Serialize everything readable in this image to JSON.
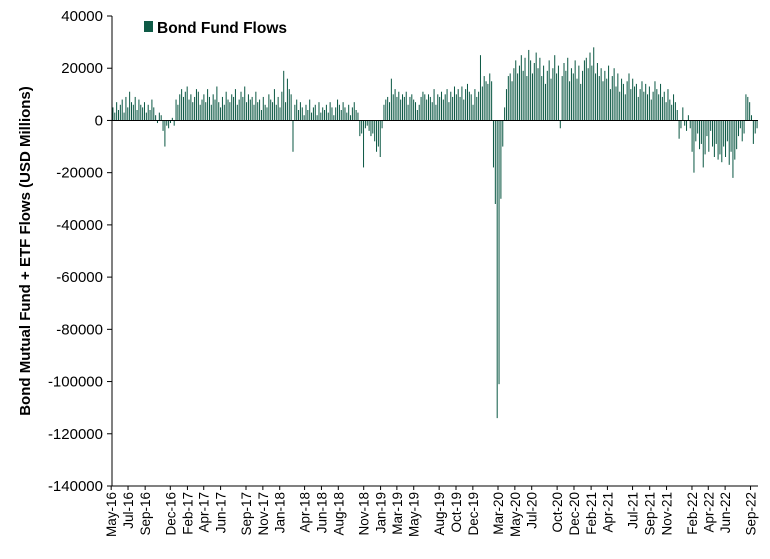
{
  "chart_data": {
    "type": "bar",
    "title": "",
    "xlabel": "",
    "ylabel": "Bond Mutual Fund + ETF Flows (USD Millions)",
    "ylim": [
      -140000,
      40000
    ],
    "yticks": [
      40000,
      20000,
      0,
      -20000,
      -40000,
      -60000,
      -80000,
      -100000,
      -120000,
      -140000
    ],
    "grid": false,
    "legend_position": "top-left",
    "x_start": "2016-05-04",
    "x_end": "2022-09-28",
    "x_tick_labels": [
      {
        "label": "May-16",
        "date": "2016-05-01"
      },
      {
        "label": "Jul-16",
        "date": "2016-07-01"
      },
      {
        "label": "Sep-16",
        "date": "2016-09-01"
      },
      {
        "label": "Dec-16",
        "date": "2016-12-01"
      },
      {
        "label": "Feb-17",
        "date": "2017-02-01"
      },
      {
        "label": "Apr-17",
        "date": "2017-04-01"
      },
      {
        "label": "Jun-17",
        "date": "2017-06-01"
      },
      {
        "label": "Sep-17",
        "date": "2017-09-01"
      },
      {
        "label": "Nov-17",
        "date": "2017-11-01"
      },
      {
        "label": "Jan-18",
        "date": "2018-01-01"
      },
      {
        "label": "Apr-18",
        "date": "2018-04-01"
      },
      {
        "label": "Jun-18",
        "date": "2018-06-01"
      },
      {
        "label": "Aug-18",
        "date": "2018-08-01"
      },
      {
        "label": "Nov-18",
        "date": "2018-11-01"
      },
      {
        "label": "Jan-19",
        "date": "2019-01-01"
      },
      {
        "label": "Mar-19",
        "date": "2019-03-01"
      },
      {
        "label": "May-19",
        "date": "2019-05-01"
      },
      {
        "label": "Aug-19",
        "date": "2019-08-01"
      },
      {
        "label": "Oct-19",
        "date": "2019-10-01"
      },
      {
        "label": "Dec-19",
        "date": "2019-12-01"
      },
      {
        "label": "Mar-20",
        "date": "2020-03-01"
      },
      {
        "label": "May-20",
        "date": "2020-05-01"
      },
      {
        "label": "Jul-20",
        "date": "2020-07-01"
      },
      {
        "label": "Oct-20",
        "date": "2020-10-01"
      },
      {
        "label": "Dec-20",
        "date": "2020-12-01"
      },
      {
        "label": "Feb-21",
        "date": "2021-02-01"
      },
      {
        "label": "Apr-21",
        "date": "2021-04-01"
      },
      {
        "label": "Jul-21",
        "date": "2021-07-01"
      },
      {
        "label": "Sep-21",
        "date": "2021-09-01"
      },
      {
        "label": "Nov-21",
        "date": "2021-11-01"
      },
      {
        "label": "Feb-22",
        "date": "2022-02-01"
      },
      {
        "label": "Apr-22",
        "date": "2022-04-01"
      },
      {
        "label": "Jun-22",
        "date": "2022-06-01"
      },
      {
        "label": "Sep-22",
        "date": "2022-09-01"
      }
    ],
    "series": [
      {
        "name": "Bond Fund Flows",
        "color": "#0E5A46",
        "frequency": "weekly",
        "values": [
          5000,
          3000,
          7000,
          4000,
          6000,
          8000,
          3000,
          9000,
          5000,
          11000,
          7000,
          6000,
          9000,
          4000,
          8000,
          6000,
          5000,
          7000,
          3000,
          6000,
          4000,
          8000,
          5000,
          2000,
          -1000,
          3000,
          2000,
          -4000,
          -10000,
          -2000,
          -3000,
          -1000,
          1000,
          -2000,
          8000,
          6000,
          10000,
          12000,
          9000,
          11000,
          13000,
          8000,
          10000,
          7000,
          9000,
          12000,
          11000,
          6000,
          8000,
          10000,
          7000,
          12000,
          9000,
          6000,
          10000,
          8000,
          13000,
          7000,
          5000,
          9000,
          6000,
          11000,
          8000,
          7000,
          10000,
          9000,
          12000,
          6000,
          8000,
          11000,
          9000,
          13000,
          7000,
          10000,
          8000,
          9000,
          6000,
          11000,
          7000,
          8000,
          4000,
          9000,
          6000,
          5000,
          10000,
          8000,
          7000,
          12000,
          6000,
          9000,
          5000,
          11000,
          19000,
          7000,
          16000,
          12000,
          10000,
          -12000,
          6000,
          8000,
          4000,
          7000,
          5000,
          2000,
          6000,
          4000,
          8000,
          3000,
          5000,
          6000,
          2000,
          7000,
          3000,
          5000,
          4000,
          6000,
          3000,
          7000,
          5000,
          2000,
          5000,
          8000,
          6000,
          4000,
          7000,
          5000,
          3000,
          6000,
          2000,
          5000,
          7000,
          4000,
          3000,
          -6000,
          -5000,
          -18000,
          -3000,
          -2000,
          -4000,
          -6000,
          -5000,
          -8000,
          -12000,
          -10000,
          -14000,
          -3000,
          6000,
          8000,
          9000,
          7000,
          16000,
          10000,
          12000,
          9000,
          11000,
          8000,
          10000,
          9000,
          11000,
          6000,
          9000,
          10000,
          8000,
          7000,
          4000,
          6000,
          9000,
          11000,
          10000,
          8000,
          10000,
          9000,
          7000,
          12000,
          6000,
          10000,
          9000,
          11000,
          8000,
          10000,
          12000,
          7000,
          11000,
          9000,
          13000,
          10000,
          12000,
          9000,
          13000,
          8000,
          12000,
          14000,
          11000,
          10000,
          6000,
          12000,
          9000,
          11000,
          25000,
          13000,
          17000,
          15000,
          14000,
          18000,
          15000,
          -18000,
          -32000,
          -114000,
          -101000,
          -30000,
          -10000,
          5000,
          12000,
          17000,
          18000,
          15000,
          20000,
          23000,
          18000,
          21000,
          25000,
          19000,
          24000,
          17000,
          27000,
          23000,
          18000,
          22000,
          26000,
          20000,
          24000,
          17000,
          21000,
          14000,
          19000,
          23000,
          16000,
          20000,
          25000,
          18000,
          21000,
          -3000,
          17000,
          22000,
          19000,
          24000,
          15000,
          20000,
          18000,
          23000,
          16000,
          21000,
          14000,
          19000,
          23000,
          24000,
          20000,
          26000,
          21000,
          28000,
          18000,
          22000,
          17000,
          20000,
          15000,
          19000,
          16000,
          21000,
          12000,
          17000,
          20000,
          13000,
          18000,
          11000,
          16000,
          14000,
          10000,
          15000,
          18000,
          12000,
          16000,
          13000,
          14000,
          9000,
          12000,
          15000,
          11000,
          14000,
          10000,
          13000,
          8000,
          11000,
          15000,
          12000,
          10000,
          14000,
          9000,
          11000,
          7000,
          12000,
          8000,
          6000,
          10000,
          7000,
          4000,
          -7000,
          -3000,
          5000,
          -2000,
          -4000,
          2000,
          -3000,
          -12000,
          -20000,
          -8000,
          -5000,
          -11000,
          -9000,
          -18000,
          -13000,
          -6000,
          -12000,
          -4000,
          -10000,
          -14000,
          -9000,
          -15000,
          -13000,
          -16000,
          -10000,
          -14000,
          -8000,
          -17000,
          -12000,
          -22000,
          -15000,
          -11000,
          -6000,
          -3000,
          -8000,
          -5000,
          10000,
          9000,
          7000,
          2000,
          -9000,
          -5000,
          -3000
        ]
      }
    ]
  }
}
